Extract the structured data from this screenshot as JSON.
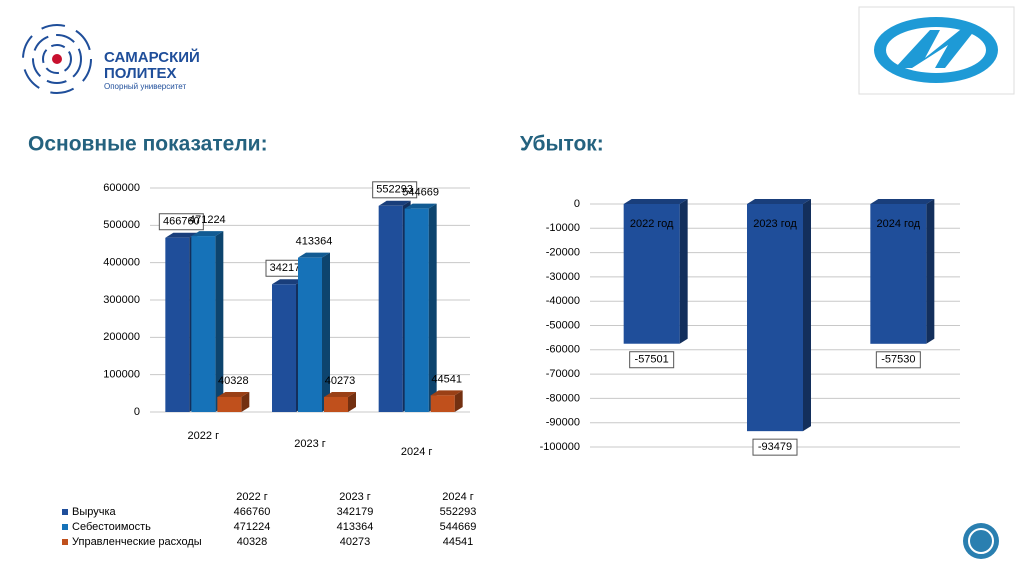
{
  "header": {
    "logo_line1": "САМАРСКИЙ",
    "logo_line2": "ПОЛИТЕХ",
    "logo_tagline": "Опорный университет"
  },
  "chart_data": [
    {
      "type": "bar",
      "title": "Основные показатели:",
      "categories": [
        "2022 г",
        "2023 г",
        "2024 г"
      ],
      "series": [
        {
          "name": "Выручка",
          "color": "#1f4e9a",
          "values": [
            466760,
            342179,
            552293
          ]
        },
        {
          "name": "Себестоимость",
          "color": "#1672b8",
          "values": [
            471224,
            413364,
            544669
          ]
        },
        {
          "name": "Управленческие расходы",
          "color": "#c0501c",
          "values": [
            40328,
            40273,
            44541
          ]
        }
      ],
      "ylim": [
        0,
        600000
      ],
      "yticks": [
        0,
        100000,
        200000,
        300000,
        400000,
        500000,
        600000
      ],
      "grid": true
    },
    {
      "type": "bar",
      "title": "Убыток:",
      "categories": [
        "2022 год",
        "2023 год",
        "2024 год"
      ],
      "series": [
        {
          "name": "Убыток",
          "color": "#1f4e9a",
          "values": [
            -57501,
            -93479,
            -57530
          ]
        }
      ],
      "ylim": [
        -100000,
        0
      ],
      "yticks": [
        0,
        -10000,
        -20000,
        -30000,
        -40000,
        -50000,
        -60000,
        -70000,
        -80000,
        -90000,
        -100000
      ],
      "grid": true
    }
  ]
}
